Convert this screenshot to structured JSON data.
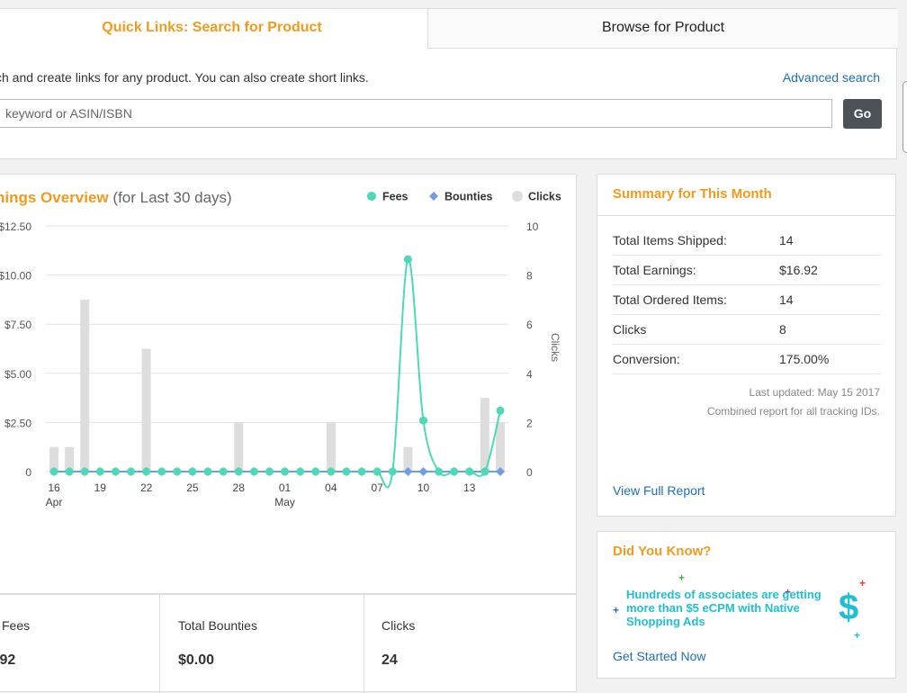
{
  "quick_links": {
    "tab_search": "Quick Links: Search for Product",
    "tab_browse": "Browse for Product",
    "description": "ch and create links for any product. You can also create short links.",
    "advanced_search": "Advanced search",
    "search_placeholder": "keyword or ASIN/ISBN",
    "go_label": "Go"
  },
  "earnings": {
    "title": "nings Overview",
    "subtitle": "(for Last 30 days)"
  },
  "chart_data": {
    "type": "line",
    "x": [
      "16",
      "17",
      "18",
      "19",
      "20",
      "21",
      "22",
      "23",
      "24",
      "25",
      "26",
      "27",
      "28",
      "29",
      "30",
      "01",
      "02",
      "03",
      "04",
      "05",
      "06",
      "07",
      "08",
      "09",
      "10",
      "11",
      "12",
      "13",
      "14",
      "15"
    ],
    "x_tick_labels": [
      "16",
      "19",
      "22",
      "25",
      "28",
      "01",
      "04",
      "07",
      "10",
      "13"
    ],
    "x_sub_labels": [
      {
        "under": "16",
        "text": "Apr"
      },
      {
        "under": "01",
        "text": "May"
      }
    ],
    "y_left_ticks": [
      "$12.50",
      "$10.00",
      "$7.50",
      "$5.00",
      "$2.50",
      "0"
    ],
    "y_left_lim": [
      0,
      12.5
    ],
    "y_right_ticks": [
      "10",
      "8",
      "6",
      "4",
      "2",
      "0"
    ],
    "y_right_lim": [
      0,
      10
    ],
    "y_right_label": "Clicks",
    "grid": true,
    "legend_position": "top-right",
    "series": [
      {
        "name": "Fees",
        "kind": "line",
        "axis": "left",
        "color": "#4dd9b8",
        "values": [
          0,
          0,
          0,
          0,
          0,
          0,
          0,
          0,
          0,
          0,
          0,
          0,
          0,
          0,
          0,
          0,
          0,
          0,
          0,
          0,
          0,
          0,
          0,
          10.8,
          2.6,
          0,
          0,
          0,
          0,
          3.1
        ]
      },
      {
        "name": "Bounties",
        "kind": "line",
        "axis": "left",
        "color": "#6f9ee6",
        "values": [
          0,
          0,
          0,
          0,
          0,
          0,
          0,
          0,
          0,
          0,
          0,
          0,
          0,
          0,
          0,
          0,
          0,
          0,
          0,
          0,
          0,
          0,
          0,
          0,
          0,
          0,
          0,
          0,
          0,
          0
        ]
      },
      {
        "name": "Clicks",
        "kind": "bar",
        "axis": "right",
        "color": "#dddddd",
        "values": [
          1,
          1,
          7,
          0,
          0,
          0,
          5,
          0,
          0,
          0,
          0,
          0,
          2,
          0,
          0,
          0,
          0,
          0,
          2,
          0,
          0,
          0,
          0,
          1,
          0,
          0,
          0,
          0,
          3,
          2
        ]
      }
    ]
  },
  "totals": {
    "fees_label": "l Fees",
    "fees_value": ".92",
    "bounties_label": "Total Bounties",
    "bounties_value": "$0.00",
    "clicks_label": "Clicks",
    "clicks_value": "24"
  },
  "summary": {
    "title": "Summary for This Month",
    "rows": [
      {
        "label": "Total Items Shipped:",
        "value": "14"
      },
      {
        "label": "Total Earnings:",
        "value": "$16.92"
      },
      {
        "label": "Total Ordered Items:",
        "value": "14"
      },
      {
        "label": "Clicks",
        "value": "8"
      },
      {
        "label": "Conversion:",
        "value": "175.00%"
      }
    ],
    "last_updated": "Last updated: May 15 2017",
    "combined_note": "Combined report for all tracking IDs.",
    "view_full_report": "View Full Report"
  },
  "did_you_know": {
    "title": "Did You Know?",
    "promo": "Hundreds of associates are getting more than $5 eCPM with Native Shopping Ads",
    "dollar": "$",
    "cta": "Get Started Now"
  },
  "colors": {
    "accent": "#f29a1c",
    "link": "#1f6fb2",
    "promo": "#1fbfd3"
  }
}
